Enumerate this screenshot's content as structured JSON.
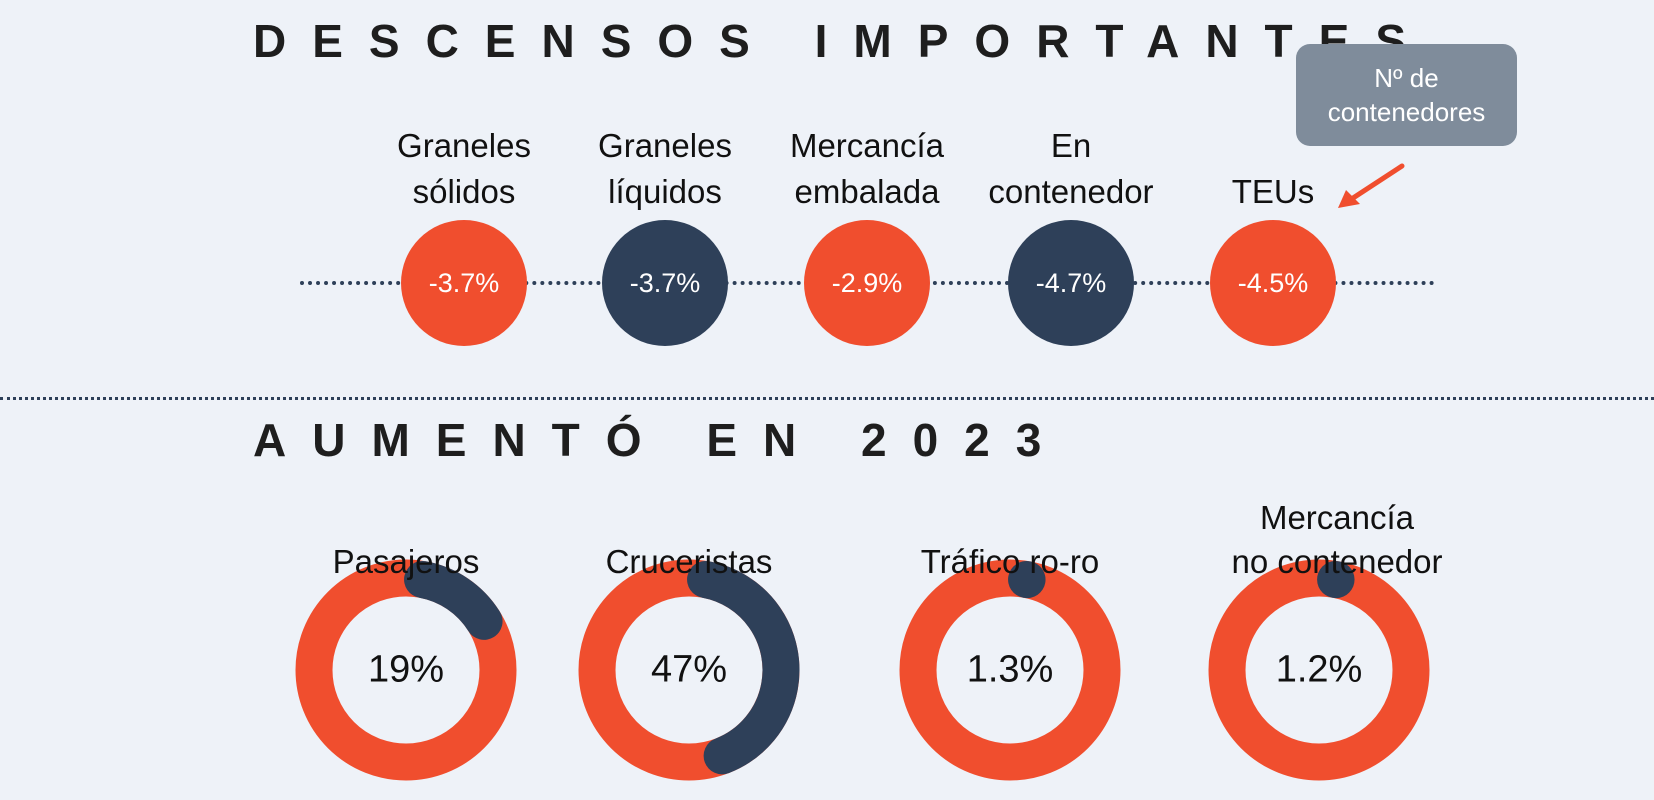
{
  "colors": {
    "orange": "#f04e2e",
    "navy": "#2e4059",
    "callout": "#7f8c9b"
  },
  "section1": {
    "title": "DESCENSOS IMPORTANTES",
    "items": [
      {
        "label_l1": "Graneles",
        "label_l2": "sólidos",
        "value": "-3.7%",
        "color": "orange"
      },
      {
        "label_l1": "Graneles",
        "label_l2": "líquidos",
        "value": "-3.7%",
        "color": "navy"
      },
      {
        "label_l1": "Mercancía",
        "label_l2": "embalada",
        "value": "-2.9%",
        "color": "orange"
      },
      {
        "label_l1": "En",
        "label_l2": "contenedor",
        "value": "-4.7%",
        "color": "navy"
      },
      {
        "label_l1": "",
        "label_l2": "TEUs",
        "value": "-4.5%",
        "color": "orange"
      }
    ],
    "callout_l1": "Nº de",
    "callout_l2": "contenedores"
  },
  "section2": {
    "title": "AUMENTÓ EN 2023"
  },
  "chart_data": {
    "type": "pie",
    "title": "AUMENTÓ EN 2023",
    "series": [
      {
        "name": "Pasajeros",
        "label_l1": "",
        "label_l2": "Pasajeros",
        "value": 19,
        "display": "19%"
      },
      {
        "name": "Cruceristas",
        "label_l1": "",
        "label_l2": "Cruceristas",
        "value": 47,
        "display": "47%"
      },
      {
        "name": "Tráfico ro-ro",
        "label_l1": "",
        "label_l2": "Tráfico ro-ro",
        "value": 1.3,
        "display": "1.3%"
      },
      {
        "name": "Mercancía no contenedor",
        "label_l1": "Mercancía",
        "label_l2": "no contenedor",
        "value": 1.2,
        "display": "1.2%"
      }
    ]
  }
}
